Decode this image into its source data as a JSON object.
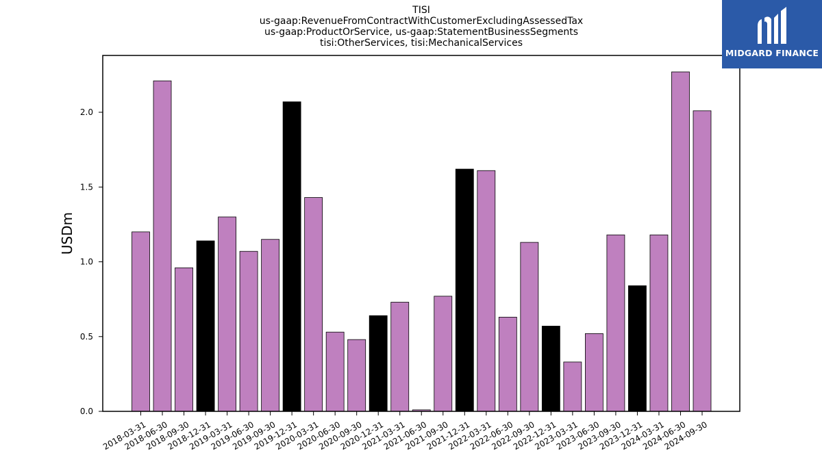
{
  "chart_data": {
    "type": "bar",
    "title_lines": [
      "TISI",
      "us-gaap:RevenueFromContractWithCustomerExcludingAssessedTax",
      "us-gaap:ProductOrService, us-gaap:StatementBusinessSegments",
      "tisi:OtherServices, tisi:MechanicalServices"
    ],
    "ylabel": "USDm",
    "xlabel": "",
    "ylim": [
      0,
      2.38
    ],
    "yticks": [
      "0.0",
      "0.5",
      "1.0",
      "1.5",
      "2.0"
    ],
    "categories": [
      "2018-03-31",
      "2018-06-30",
      "2018-09-30",
      "2018-12-31",
      "2019-03-31",
      "2019-06-30",
      "2019-09-30",
      "2019-12-31",
      "2020-03-31",
      "2020-06-30",
      "2020-09-30",
      "2020-12-31",
      "2021-03-31",
      "2021-06-30",
      "2021-09-30",
      "2021-12-31",
      "2022-03-31",
      "2022-06-30",
      "2022-09-30",
      "2022-12-31",
      "2023-03-31",
      "2023-06-30",
      "2023-09-30",
      "2023-12-31",
      "2024-03-31",
      "2024-06-30",
      "2024-09-30"
    ],
    "values": [
      1.2,
      2.21,
      0.96,
      1.14,
      1.3,
      1.07,
      1.15,
      2.07,
      1.43,
      0.53,
      0.48,
      0.64,
      0.73,
      0.01,
      0.77,
      1.62,
      1.61,
      0.63,
      1.13,
      0.57,
      0.33,
      0.52,
      1.18,
      0.84,
      1.18,
      2.27,
      2.01
    ],
    "bar_colors": [
      "#bf80bf",
      "#bf80bf",
      "#bf80bf",
      "#000000",
      "#bf80bf",
      "#bf80bf",
      "#bf80bf",
      "#000000",
      "#bf80bf",
      "#bf80bf",
      "#bf80bf",
      "#000000",
      "#bf80bf",
      "#bf80bf",
      "#bf80bf",
      "#000000",
      "#bf80bf",
      "#bf80bf",
      "#bf80bf",
      "#000000",
      "#bf80bf",
      "#bf80bf",
      "#bf80bf",
      "#000000",
      "#bf80bf",
      "#bf80bf",
      "#bf80bf"
    ],
    "grid": false
  },
  "logo": {
    "text": "MIDGARD FINANCE",
    "background": "#2b5aa8"
  }
}
